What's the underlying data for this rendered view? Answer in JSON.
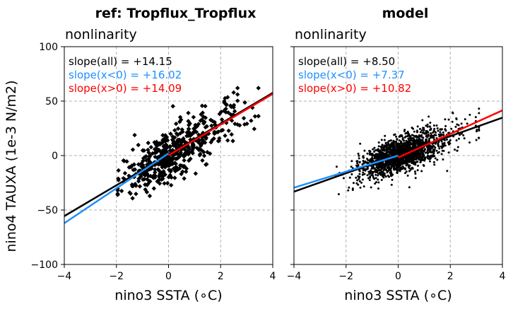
{
  "figure": {
    "ylabel": "nino4 TAUXA (1e-3 N/m2)"
  },
  "chart_data": [
    {
      "type": "scatter",
      "title": "ref: Tropflux_Tropflux",
      "subtitle": "nonlinarity",
      "xlabel": "nino3 SSTA (∘C)",
      "ylabel": "nino4 TAUXA (1e-3 N/m2)",
      "xlim": [
        -4,
        4
      ],
      "ylim": [
        -100,
        100
      ],
      "xticks": [
        -4,
        -2,
        0,
        2,
        4
      ],
      "yticks": [
        -100,
        -50,
        0,
        50,
        100
      ],
      "grid": true,
      "marker": "diamond",
      "annotations": [
        {
          "text": "slope(all) = +14.15",
          "color": "#000000"
        },
        {
          "text": "slope(x<0) = +16.02",
          "color": "#1e90ff"
        },
        {
          "text": "slope(x>0) = +14.09",
          "color": "#ff0000"
        }
      ],
      "fit_lines": [
        {
          "label": "all",
          "color": "#000000",
          "x": [
            -4,
            4
          ],
          "y": [
            -55.6,
            57.6
          ]
        },
        {
          "label": "x<0",
          "color": "#1e90ff",
          "x": [
            -4,
            0
          ],
          "y": [
            -62.1,
            2.0
          ]
        },
        {
          "label": "x>0",
          "color": "#ff0000",
          "x": [
            0,
            4
          ],
          "y": [
            0.2,
            56.6
          ]
        }
      ],
      "points": {
        "x": [],
        "y": []
      }
    },
    {
      "type": "scatter",
      "title": "model",
      "subtitle": "nonlinarity",
      "xlabel": "nino3 SSTA (∘C)",
      "xlim": [
        -4,
        4
      ],
      "ylim": [
        -100,
        100
      ],
      "xticks": [
        -4,
        -2,
        0,
        2,
        4
      ],
      "yticks": [
        -100,
        -50,
        0,
        50,
        100
      ],
      "grid": true,
      "marker": "dot",
      "annotations": [
        {
          "text": "slope(all) = +8.50",
          "color": "#000000"
        },
        {
          "text": "slope(x<0) = +7.37",
          "color": "#1e90ff"
        },
        {
          "text": "slope(x>0) = +10.82",
          "color": "#ff0000"
        }
      ],
      "fit_lines": [
        {
          "label": "all",
          "color": "#000000",
          "x": [
            -4,
            4
          ],
          "y": [
            -33.2,
            34.8
          ]
        },
        {
          "label": "x<0",
          "color": "#1e90ff",
          "x": [
            -4,
            0
          ],
          "y": [
            -29.5,
            0.0
          ]
        },
        {
          "label": "x>0",
          "color": "#ff0000",
          "x": [
            0,
            4
          ],
          "y": [
            -1.8,
            41.5
          ]
        }
      ],
      "points": {
        "x": [],
        "y": []
      }
    }
  ]
}
